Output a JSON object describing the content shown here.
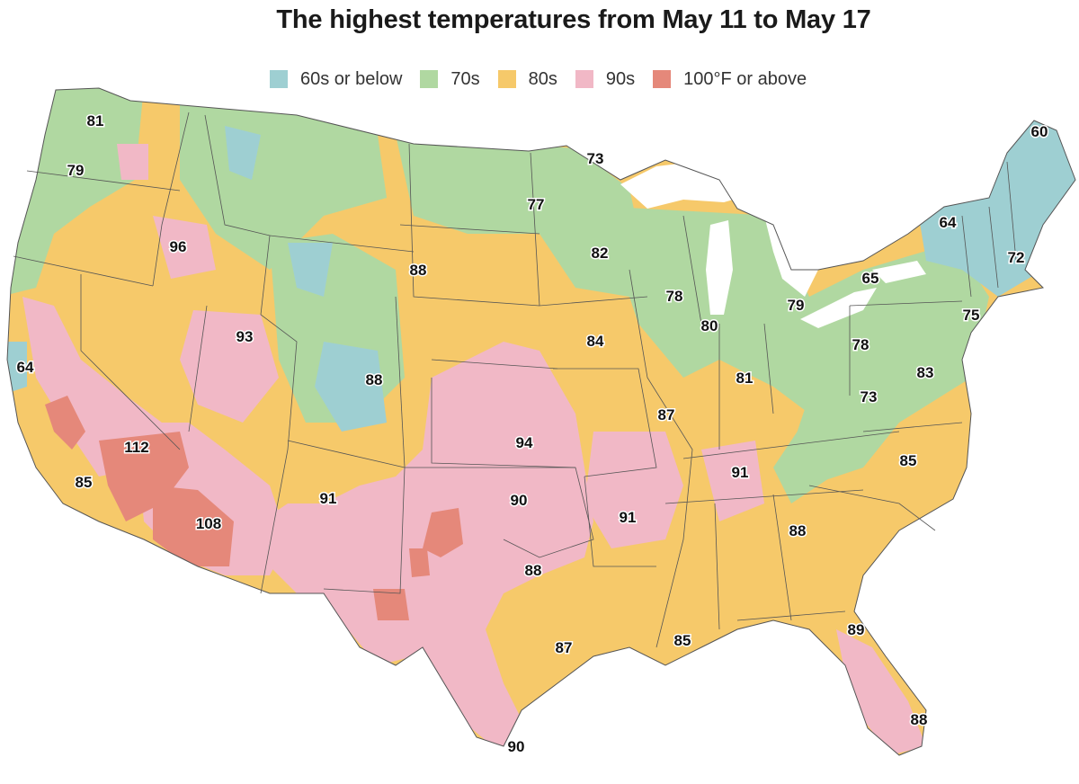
{
  "title": "The highest temperatures from May 11 to May 17",
  "legend": [
    {
      "label": "60s or below",
      "color": "#9ecfd2"
    },
    {
      "label": "70s",
      "color": "#b0d8a1"
    },
    {
      "label": "80s",
      "color": "#f6c96a"
    },
    {
      "label": "90s",
      "color": "#f1b8c6"
    },
    {
      "label": "100°F or above",
      "color": "#e5887a"
    }
  ],
  "map_colors": {
    "lakes": "#ffffff",
    "borders": "#555555"
  },
  "temperatures": [
    {
      "id": "seattle",
      "value": "81"
    },
    {
      "id": "portland",
      "value": "79"
    },
    {
      "id": "san-francisco",
      "value": "64"
    },
    {
      "id": "los-angeles",
      "value": "85"
    },
    {
      "id": "death-valley",
      "value": "112"
    },
    {
      "id": "phoenix",
      "value": "108"
    },
    {
      "id": "boise",
      "value": "96"
    },
    {
      "id": "salt-lake",
      "value": "93"
    },
    {
      "id": "denver",
      "value": "88"
    },
    {
      "id": "wyoming",
      "value": "88"
    },
    {
      "id": "albuquerque",
      "value": "91"
    },
    {
      "id": "kansas",
      "value": "94"
    },
    {
      "id": "oklahoma",
      "value": "90"
    },
    {
      "id": "dallas",
      "value": "88"
    },
    {
      "id": "houston",
      "value": "87"
    },
    {
      "id": "south-texas",
      "value": "90"
    },
    {
      "id": "north-dakota",
      "value": "73"
    },
    {
      "id": "minnesota-north",
      "value": "77"
    },
    {
      "id": "minneapolis",
      "value": "82"
    },
    {
      "id": "iowa",
      "value": "84"
    },
    {
      "id": "wisconsin",
      "value": "78"
    },
    {
      "id": "chicago",
      "value": "80"
    },
    {
      "id": "michigan",
      "value": "79"
    },
    {
      "id": "st-louis",
      "value": "87"
    },
    {
      "id": "arkansas",
      "value": "91"
    },
    {
      "id": "indiana",
      "value": "81"
    },
    {
      "id": "tennessee",
      "value": "91"
    },
    {
      "id": "new-orleans",
      "value": "85"
    },
    {
      "id": "atlanta",
      "value": "88"
    },
    {
      "id": "jacksonville",
      "value": "89"
    },
    {
      "id": "miami",
      "value": "88"
    },
    {
      "id": "north-carolina",
      "value": "85"
    },
    {
      "id": "west-virginia",
      "value": "73"
    },
    {
      "id": "pennsylvania",
      "value": "78"
    },
    {
      "id": "washington-dc",
      "value": "83"
    },
    {
      "id": "new-york-state",
      "value": "65"
    },
    {
      "id": "new-york-city",
      "value": "75"
    },
    {
      "id": "vermont",
      "value": "64"
    },
    {
      "id": "boston",
      "value": "72"
    },
    {
      "id": "maine",
      "value": "60"
    }
  ]
}
